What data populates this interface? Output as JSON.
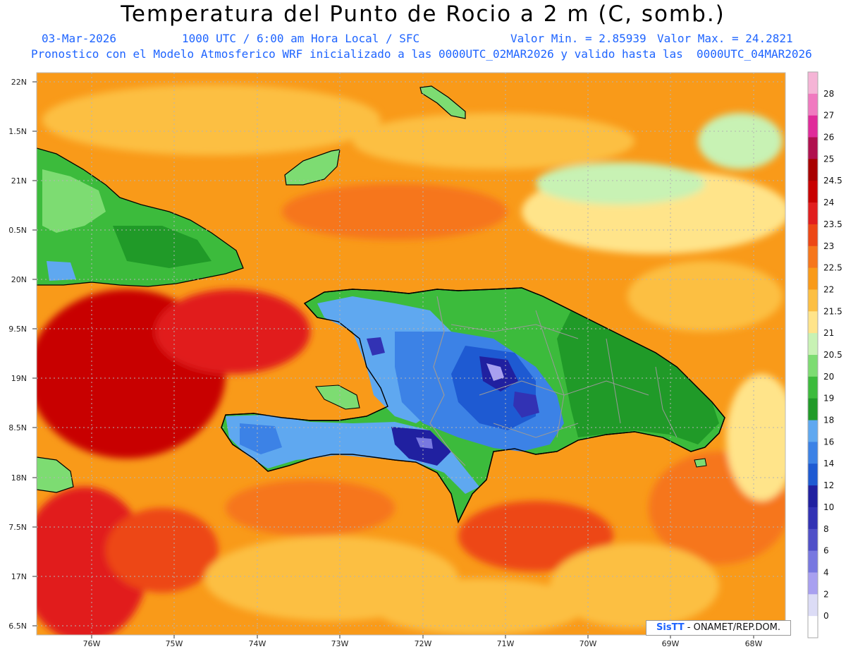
{
  "header": {
    "title": "Temperatura del Punto de Rocio a 2 m (C, somb.)",
    "date": "03-Mar-2026",
    "time": "1000 UTC / 6:00 am Hora Local / SFC",
    "min": "Valor Min. = 2.85939",
    "max": "Valor Max. = 24.2821",
    "line3": "Pronostico con el Modelo Atmosferico WRF inicializado a las 0000UTC_02MAR2026 y valido hasta las  0000UTC_04MAR2026"
  },
  "axes": {
    "lat_labels": [
      "22N",
      "1.5N",
      "21N",
      "0.5N",
      "20N",
      "9.5N",
      "19N",
      "8.5N",
      "18N",
      "7.5N",
      "17N",
      "6.5N"
    ],
    "lon_labels": [
      "76W",
      "75W",
      "74W",
      "73W",
      "72W",
      "71W",
      "70W",
      "69W",
      "68W"
    ]
  },
  "colorbar": {
    "labels": [
      "28",
      "27",
      "26",
      "25",
      "24.5",
      "24",
      "23.5",
      "23",
      "22.5",
      "22",
      "21.5",
      "21",
      "20.5",
      "20",
      "19",
      "18",
      "16",
      "14",
      "12",
      "10",
      "8",
      "6",
      "4",
      "2",
      "0"
    ],
    "colors": [
      "#f5b4d6",
      "#f07ac0",
      "#e02b9a",
      "#b0104e",
      "#a80000",
      "#c80000",
      "#e11e1e",
      "#ed4715",
      "#f6761b",
      "#f99a19",
      "#fcbf43",
      "#ffe48a",
      "#c8f2b4",
      "#7ddc72",
      "#3cbb3c",
      "#209a28",
      "#5fa8f0",
      "#3c82e6",
      "#1e5ad2",
      "#2020a0",
      "#3232b4",
      "#5050c8",
      "#7878e0",
      "#a8a0f0",
      "#dcdcf6",
      "#ffffff"
    ]
  },
  "credit": {
    "brand": "SisTT",
    "text": " - ONAMET/REP.DOM."
  }
}
